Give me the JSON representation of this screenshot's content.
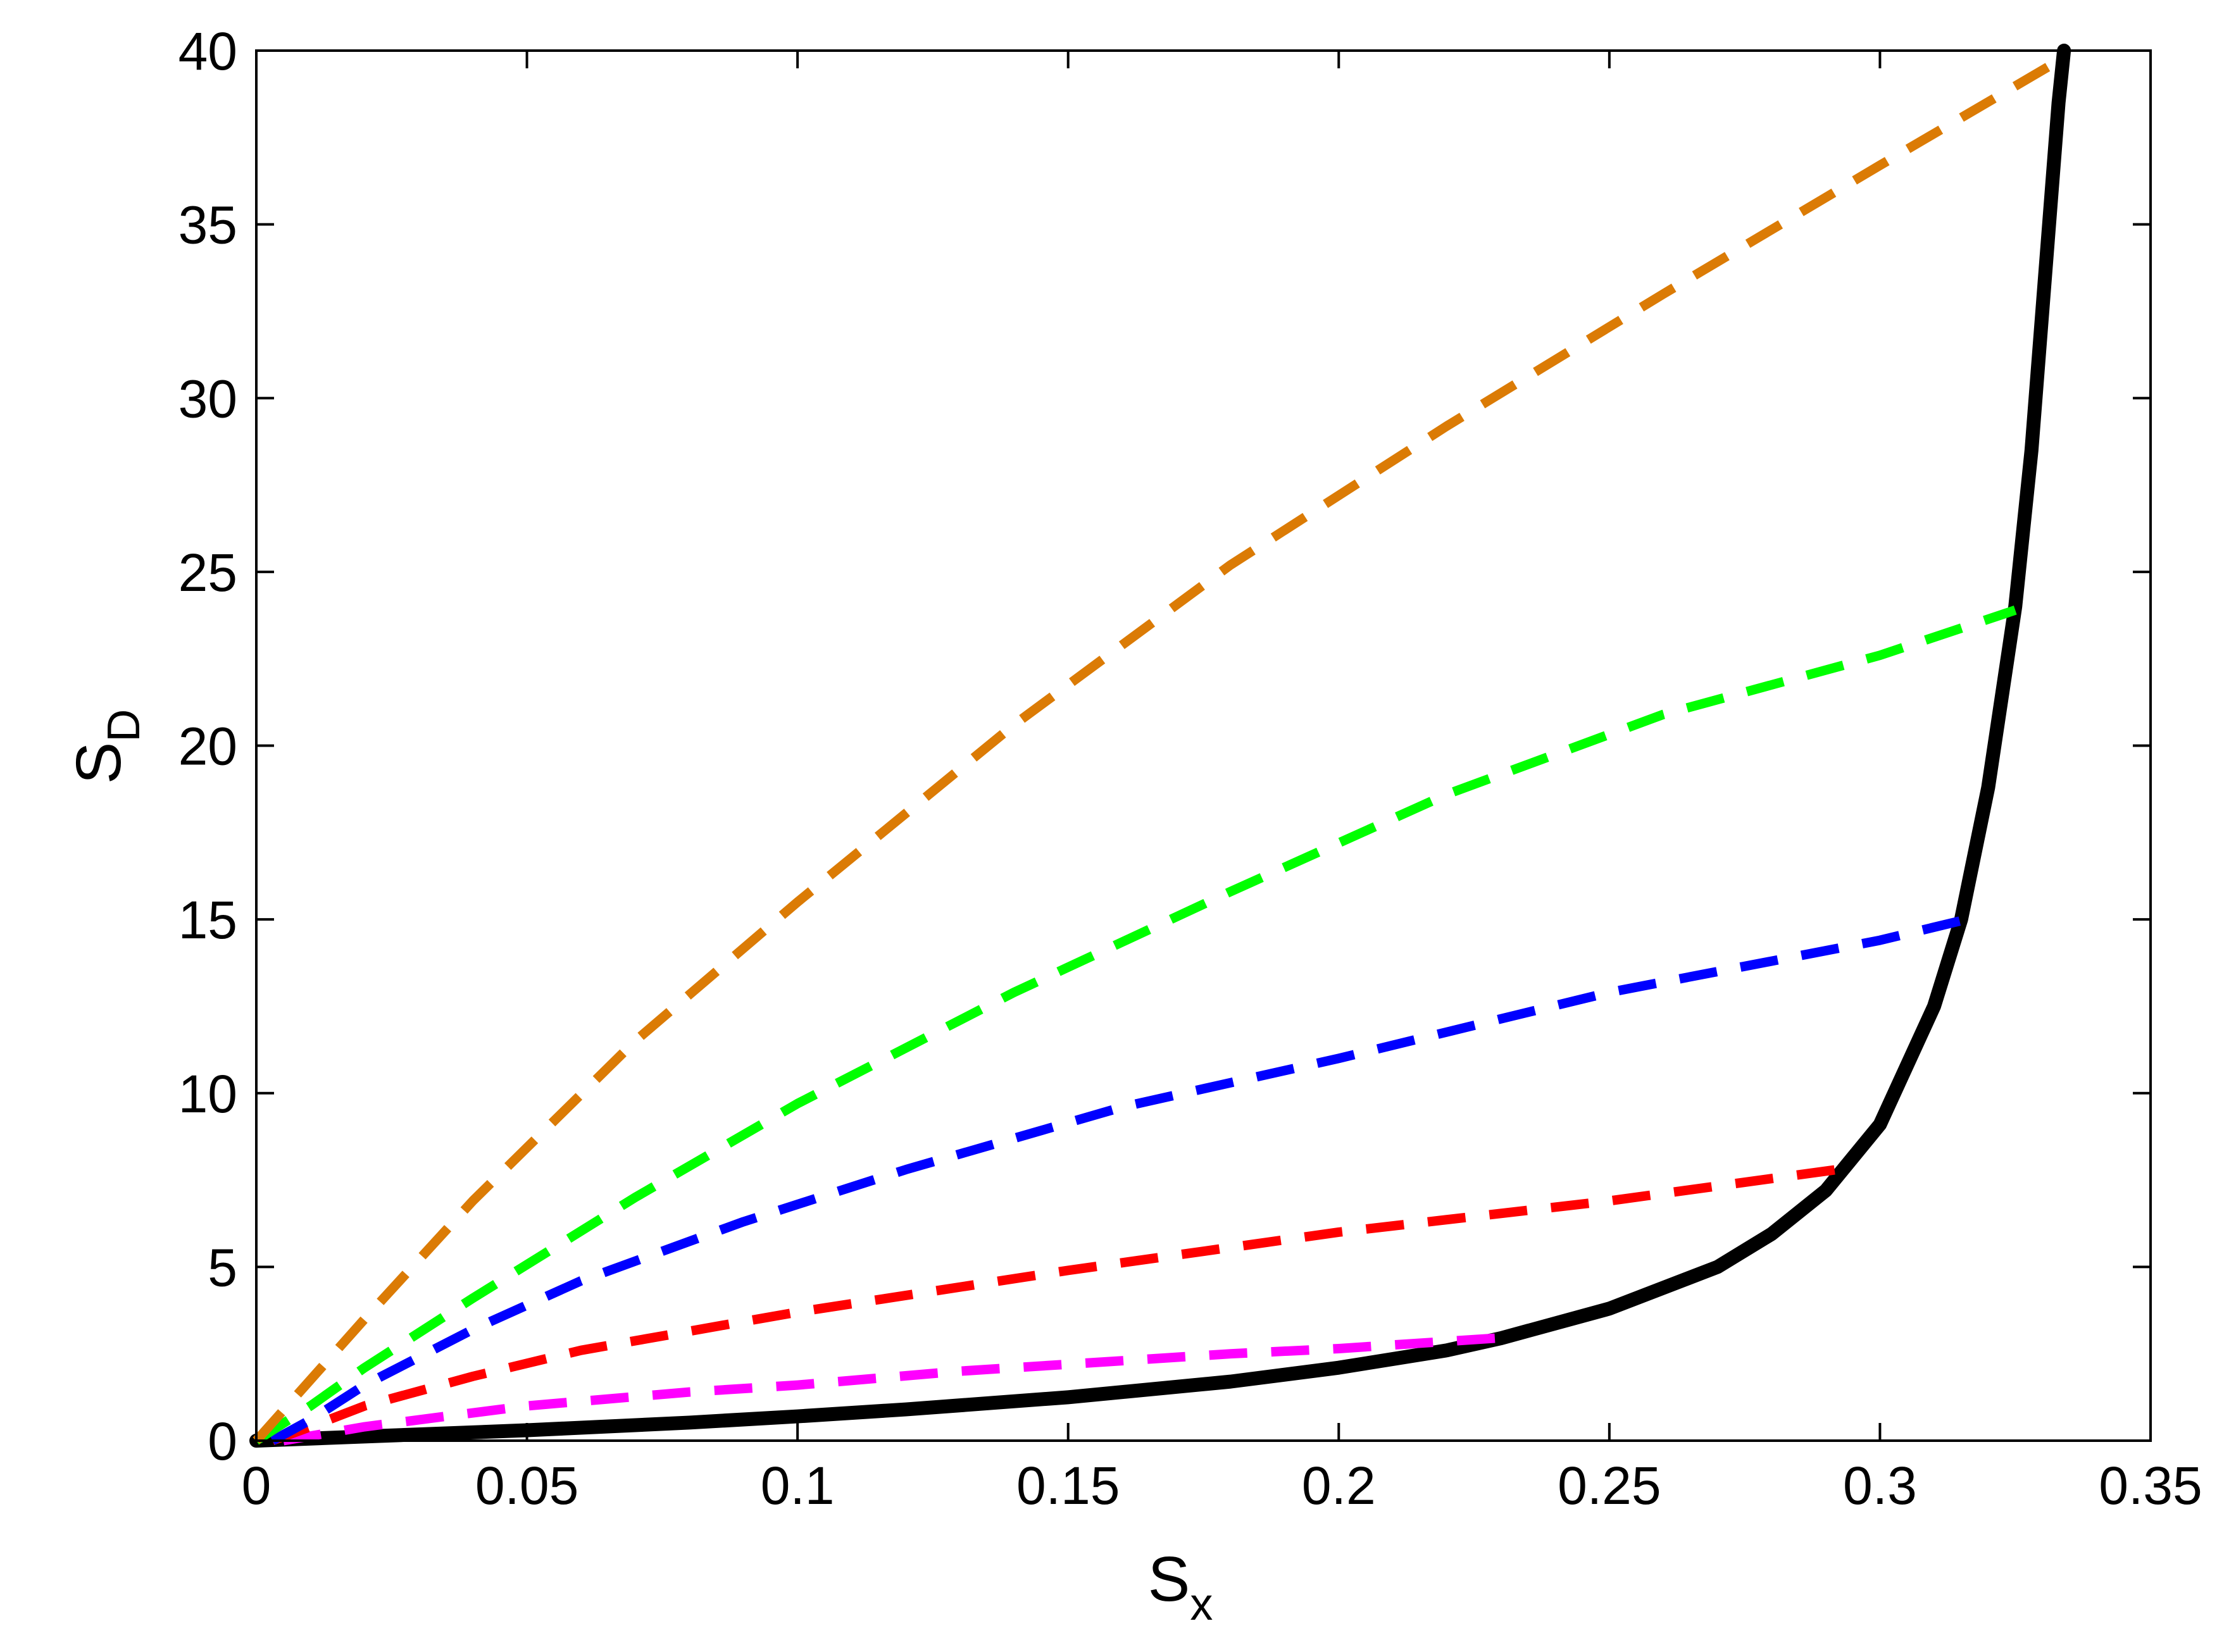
{
  "chart_data": {
    "type": "line",
    "xlabel": {
      "main": "S",
      "sub": "x"
    },
    "ylabel": {
      "main": "S",
      "sub": "D"
    },
    "xlim": [
      0,
      0.35
    ],
    "ylim": [
      0,
      40
    ],
    "x_ticks": [
      0,
      0.05,
      0.1,
      0.15,
      0.2,
      0.25,
      0.3,
      0.35
    ],
    "x_tick_labels": [
      "0",
      "0.05",
      "0.1",
      "0.15",
      "0.2",
      "0.25",
      "0.3",
      "0.35"
    ],
    "y_ticks": [
      0,
      5,
      10,
      15,
      20,
      25,
      30,
      35,
      40
    ],
    "y_tick_labels": [
      "0",
      "5",
      "10",
      "15",
      "20",
      "25",
      "30",
      "35",
      "40"
    ],
    "grid": false,
    "series": [
      {
        "style": "solid",
        "color": "#000000",
        "x": [
          0,
          0.02,
          0.05,
          0.08,
          0.1,
          0.12,
          0.15,
          0.18,
          0.2,
          0.22,
          0.23,
          0.25,
          0.27,
          0.28,
          0.29,
          0.3,
          0.31,
          0.315,
          0.32,
          0.325,
          0.328,
          0.331,
          0.333,
          0.334
        ],
        "y": [
          0,
          0.12,
          0.3,
          0.52,
          0.7,
          0.9,
          1.25,
          1.7,
          2.1,
          2.6,
          2.95,
          3.8,
          5.0,
          5.95,
          7.2,
          9.1,
          12.5,
          15.0,
          18.8,
          24.0,
          28.5,
          34.5,
          38.5,
          40.0
        ]
      },
      {
        "style": "dashed",
        "color": "#FF00FF",
        "x": [
          0.005,
          0.02,
          0.05,
          0.08,
          0.1,
          0.13,
          0.15,
          0.18,
          0.2,
          0.229
        ],
        "y": [
          0.0,
          0.4,
          1.0,
          1.4,
          1.6,
          2.0,
          2.2,
          2.5,
          2.65,
          2.95
        ]
      },
      {
        "style": "dashed",
        "color": "#FF0000",
        "x": [
          0.003,
          0.01,
          0.02,
          0.04,
          0.06,
          0.1,
          0.15,
          0.2,
          0.25,
          0.292
        ],
        "y": [
          0.0,
          0.4,
          1.0,
          1.85,
          2.6,
          3.7,
          4.9,
          6.0,
          6.9,
          7.8
        ]
      },
      {
        "style": "dashed",
        "color": "#0000FF",
        "x": [
          0.003,
          0.01,
          0.02,
          0.04,
          0.06,
          0.09,
          0.12,
          0.16,
          0.2,
          0.25,
          0.3,
          0.316
        ],
        "y": [
          0.0,
          0.6,
          1.6,
          3.2,
          4.6,
          6.3,
          7.8,
          9.6,
          11.0,
          12.9,
          14.4,
          15.0
        ]
      },
      {
        "style": "dashed",
        "color": "#00FF00",
        "x": [
          0,
          0.01,
          0.02,
          0.04,
          0.07,
          0.1,
          0.14,
          0.18,
          0.22,
          0.26,
          0.3,
          0.325
        ],
        "y": [
          0,
          1.0,
          2.1,
          4.1,
          7.0,
          9.7,
          12.9,
          15.8,
          18.6,
          20.9,
          22.6,
          23.9
        ]
      },
      {
        "style": "dashed",
        "color": "#DB7B05",
        "x": [
          0,
          0.02,
          0.04,
          0.07,
          0.1,
          0.14,
          0.18,
          0.22,
          0.26,
          0.3,
          0.334
        ],
        "y": [
          0,
          3.5,
          6.9,
          11.5,
          15.5,
          20.6,
          25.2,
          29.2,
          33.0,
          36.7,
          39.8
        ]
      }
    ]
  }
}
